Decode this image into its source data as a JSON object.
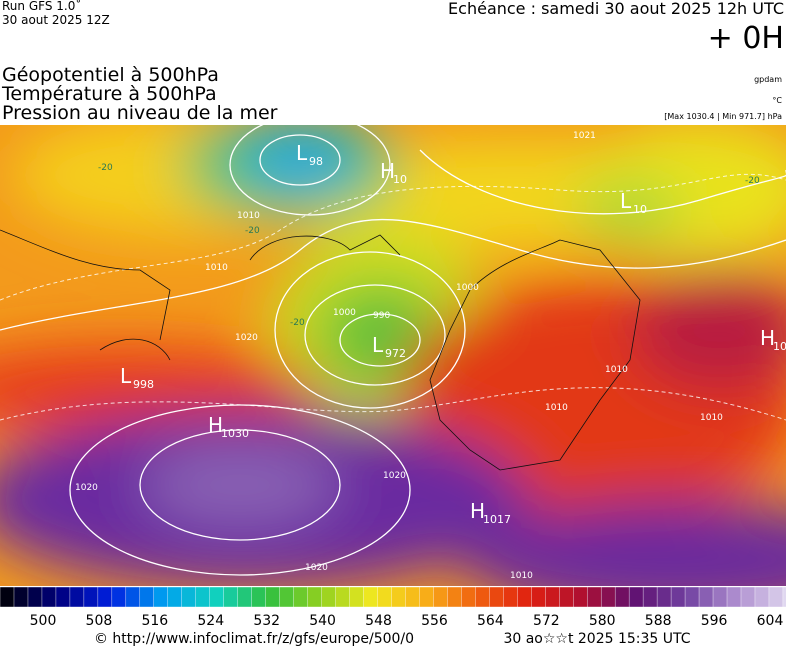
{
  "header": {
    "run": "Run GFS 1.0˚",
    "run_date": "30 aout 2025 12Z",
    "echeance": "Echéance : samedi 30 aout 2025 12h UTC",
    "offset": "+ 0H",
    "fields": [
      "Géopotentiel à 500hPa",
      "Température à 500hPa",
      "Pression au niveau de la mer"
    ],
    "units": [
      "gpdam",
      "°C",
      "[Max 1030.4 | Min 971.7] hPa"
    ]
  },
  "map": {
    "centers": [
      {
        "letter": "L",
        "value": "98"
      },
      {
        "letter": "H",
        "value": "10"
      },
      {
        "letter": "L",
        "value": "972"
      },
      {
        "letter": "L",
        "value": "998"
      },
      {
        "letter": "H",
        "value": "1030"
      },
      {
        "letter": "H",
        "value": "1017"
      },
      {
        "letter": "H",
        "value": "10"
      },
      {
        "letter": "L",
        "value": "10"
      }
    ],
    "isobar_labels": [
      "1021",
      "1010",
      "1000",
      "990",
      "1000",
      "1010",
      "1020",
      "1020",
      "1020",
      "1020",
      "1010",
      "1010",
      "1010",
      "1010"
    ],
    "temperature_labels": [
      "-20",
      "-20",
      "-20",
      "-20"
    ]
  },
  "colorbar": {
    "ticks": [
      500,
      508,
      516,
      524,
      532,
      540,
      548,
      556,
      564,
      572,
      580,
      588,
      596,
      604
    ]
  },
  "footer": {
    "source": "© http://www.infoclimat.fr/z/gfs/europe/500/0",
    "generated": "30 ao☆☆t 2025 15:35 UTC"
  }
}
